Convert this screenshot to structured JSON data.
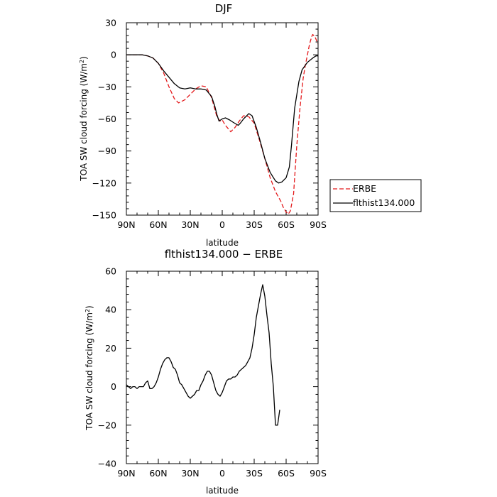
{
  "chart_data": [
    {
      "type": "line",
      "title": "DJF",
      "xlabel": "latitude",
      "ylabel": "TOA SW cloud forcing (W/m²)",
      "ylabel_unit_base": "W/m",
      "ylabel_unit_exp": "2",
      "xlim": [
        90,
        -90
      ],
      "ylim": [
        -150,
        30
      ],
      "x_ticks": [
        90,
        60,
        30,
        0,
        -30,
        -60,
        -90
      ],
      "x_tick_labels": [
        "90N",
        "60N",
        "30N",
        "0",
        "30S",
        "60S",
        "90S"
      ],
      "y_ticks": [
        30,
        0,
        -30,
        -60,
        -90,
        -120,
        -150
      ],
      "y_tick_labels": [
        "30",
        "0",
        "−30",
        "−60",
        "−90",
        "−120",
        "−150"
      ],
      "legend_placement": "outside-right",
      "series": [
        {
          "name": "ERBE",
          "color": "#e41a1c",
          "dash": true,
          "points": [
            [
              90,
              0
            ],
            [
              80,
              0
            ],
            [
              75,
              0
            ],
            [
              70,
              -1
            ],
            [
              65,
              -3
            ],
            [
              60,
              -8
            ],
            [
              55,
              -17
            ],
            [
              50,
              -30
            ],
            [
              45,
              -41
            ],
            [
              41,
              -45
            ],
            [
              35,
              -42
            ],
            [
              30,
              -37
            ],
            [
              25,
              -32
            ],
            [
              20,
              -29
            ],
            [
              15,
              -30
            ],
            [
              10,
              -40
            ],
            [
              5,
              -58
            ],
            [
              2,
              -62
            ],
            [
              0,
              -61
            ],
            [
              -3,
              -66
            ],
            [
              -8,
              -72
            ],
            [
              -12,
              -68
            ],
            [
              -16,
              -62
            ],
            [
              -20,
              -57
            ],
            [
              -25,
              -58
            ],
            [
              -30,
              -64
            ],
            [
              -35,
              -80
            ],
            [
              -40,
              -97
            ],
            [
              -45,
              -115
            ],
            [
              -50,
              -128
            ],
            [
              -55,
              -137
            ],
            [
              -57,
              -142
            ],
            [
              -60,
              -147
            ],
            [
              -62,
              -149
            ],
            [
              -64,
              -146
            ],
            [
              -67,
              -130
            ],
            [
              -70,
              -85
            ],
            [
              -73,
              -50
            ],
            [
              -76,
              -22
            ],
            [
              -78,
              -10
            ],
            [
              -80,
              0
            ],
            [
              -82,
              10
            ],
            [
              -84,
              17
            ],
            [
              -85,
              19
            ],
            [
              -87,
              17
            ],
            [
              -90,
              10
            ]
          ]
        },
        {
          "name": "flthist134.000",
          "color": "#000000",
          "dash": false,
          "points": [
            [
              90,
              0
            ],
            [
              80,
              0
            ],
            [
              75,
              0
            ],
            [
              70,
              -1
            ],
            [
              65,
              -3
            ],
            [
              60,
              -8
            ],
            [
              55,
              -15
            ],
            [
              50,
              -21
            ],
            [
              45,
              -27
            ],
            [
              40,
              -31
            ],
            [
              35,
              -32
            ],
            [
              30,
              -31
            ],
            [
              25,
              -32
            ],
            [
              20,
              -32
            ],
            [
              15,
              -33
            ],
            [
              10,
              -39
            ],
            [
              7,
              -48
            ],
            [
              5,
              -56
            ],
            [
              3,
              -62
            ],
            [
              0,
              -60
            ],
            [
              -3,
              -59
            ],
            [
              -7,
              -61
            ],
            [
              -10,
              -63
            ],
            [
              -15,
              -66
            ],
            [
              -17,
              -64
            ],
            [
              -20,
              -60
            ],
            [
              -25,
              -55
            ],
            [
              -28,
              -57
            ],
            [
              -32,
              -68
            ],
            [
              -36,
              -82
            ],
            [
              -40,
              -97
            ],
            [
              -45,
              -110
            ],
            [
              -50,
              -118
            ],
            [
              -53,
              -120
            ],
            [
              -56,
              -119
            ],
            [
              -60,
              -115
            ],
            [
              -63,
              -105
            ],
            [
              -65,
              -85
            ],
            [
              -68,
              -50
            ],
            [
              -72,
              -25
            ],
            [
              -75,
              -14
            ],
            [
              -80,
              -7
            ],
            [
              -85,
              -3
            ],
            [
              -88,
              -1
            ],
            [
              -90,
              -1
            ]
          ]
        }
      ]
    },
    {
      "type": "line",
      "title": "flthist134.000 − ERBE",
      "xlabel": "latitude",
      "ylabel": "TOA SW cloud forcing (W/m²)",
      "ylabel_unit_base": "W/m",
      "ylabel_unit_exp": "2",
      "xlim": [
        90,
        -90
      ],
      "ylim": [
        -40,
        60
      ],
      "x_ticks": [
        90,
        60,
        30,
        0,
        -30,
        -60,
        -90
      ],
      "x_tick_labels": [
        "90N",
        "60N",
        "30N",
        "0",
        "30S",
        "60S",
        "90S"
      ],
      "y_ticks": [
        60,
        40,
        20,
        0,
        -20,
        -40
      ],
      "y_tick_labels": [
        "60",
        "40",
        "20",
        "0",
        "−20",
        "−40"
      ],
      "series": [
        {
          "color": "#000000",
          "dash": false,
          "points": [
            [
              90,
              1
            ],
            [
              88,
              0
            ],
            [
              86,
              -1
            ],
            [
              84,
              0
            ],
            [
              82,
              0
            ],
            [
              80,
              -1
            ],
            [
              78,
              0
            ],
            [
              76,
              0
            ],
            [
              74,
              0
            ],
            [
              72,
              2
            ],
            [
              70,
              3
            ],
            [
              68,
              -1
            ],
            [
              66,
              -1
            ],
            [
              64,
              0
            ],
            [
              62,
              2
            ],
            [
              60,
              5
            ],
            [
              58,
              9
            ],
            [
              56,
              12
            ],
            [
              54,
              14
            ],
            [
              52,
              15
            ],
            [
              50,
              15
            ],
            [
              48,
              13
            ],
            [
              46,
              10
            ],
            [
              44,
              9
            ],
            [
              42,
              6
            ],
            [
              40,
              2
            ],
            [
              38,
              1
            ],
            [
              36,
              -1
            ],
            [
              34,
              -3
            ],
            [
              32,
              -5
            ],
            [
              30,
              -6
            ],
            [
              28,
              -5
            ],
            [
              26,
              -4
            ],
            [
              24,
              -2
            ],
            [
              22,
              -2
            ],
            [
              20,
              1
            ],
            [
              18,
              3
            ],
            [
              16,
              6
            ],
            [
              14,
              8
            ],
            [
              12,
              8
            ],
            [
              10,
              6
            ],
            [
              8,
              2
            ],
            [
              6,
              -2
            ],
            [
              4,
              -4
            ],
            [
              2,
              -5
            ],
            [
              0,
              -3
            ],
            [
              -2,
              0
            ],
            [
              -4,
              3
            ],
            [
              -6,
              4
            ],
            [
              -8,
              4
            ],
            [
              -10,
              5
            ],
            [
              -12,
              5
            ],
            [
              -14,
              6
            ],
            [
              -16,
              8
            ],
            [
              -18,
              9
            ],
            [
              -20,
              10
            ],
            [
              -22,
              11
            ],
            [
              -24,
              13
            ],
            [
              -26,
              15
            ],
            [
              -28,
              20
            ],
            [
              -30,
              27
            ],
            [
              -32,
              36
            ],
            [
              -34,
              42
            ],
            [
              -36,
              48
            ],
            [
              -38,
              53
            ],
            [
              -40,
              47
            ],
            [
              -42,
              37
            ],
            [
              -44,
              28
            ],
            [
              -46,
              12
            ],
            [
              -48,
              0
            ],
            [
              -50,
              -20
            ],
            [
              -52,
              -20
            ],
            [
              -54,
              -12
            ]
          ]
        }
      ]
    }
  ]
}
